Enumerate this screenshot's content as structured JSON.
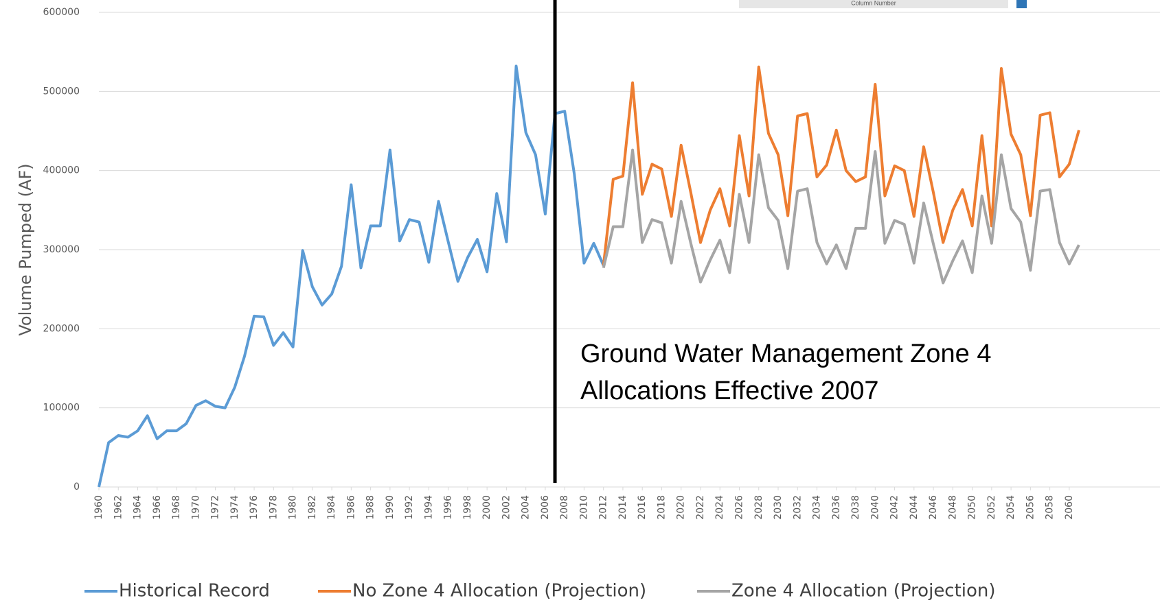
{
  "chart_data": {
    "type": "line",
    "y_label": "Volume Pumped (AF)",
    "annotation": [
      "Ground Water Management Zone 4",
      "Allocations Effective 2007"
    ],
    "inset_label": "Column Number",
    "vline_x": 2007,
    "xlim": [
      1960,
      2061
    ],
    "ylim": [
      0,
      600000
    ],
    "yticks": [
      0,
      100000,
      200000,
      300000,
      400000,
      500000,
      600000
    ],
    "xticks": [
      1960,
      1962,
      1964,
      1966,
      1968,
      1970,
      1972,
      1974,
      1976,
      1978,
      1980,
      1982,
      1984,
      1986,
      1988,
      1990,
      1992,
      1994,
      1996,
      1998,
      2000,
      2002,
      2004,
      2006,
      2008,
      2010,
      2012,
      2014,
      2016,
      2018,
      2020,
      2022,
      2024,
      2026,
      2028,
      2030,
      2032,
      2034,
      2036,
      2038,
      2040,
      2042,
      2044,
      2046,
      2048,
      2050,
      2052,
      2054,
      2056,
      2058,
      2060
    ],
    "grid": true,
    "x": [
      1960,
      1961,
      1962,
      1963,
      1964,
      1965,
      1966,
      1967,
      1968,
      1969,
      1970,
      1971,
      1972,
      1973,
      1974,
      1975,
      1976,
      1977,
      1978,
      1979,
      1980,
      1981,
      1982,
      1983,
      1984,
      1985,
      1986,
      1987,
      1988,
      1989,
      1990,
      1991,
      1992,
      1993,
      1994,
      1995,
      1996,
      1997,
      1998,
      1999,
      2000,
      2001,
      2002,
      2003,
      2004,
      2005,
      2006,
      2007,
      2008,
      2009,
      2010,
      2011,
      2012,
      2013,
      2014,
      2015,
      2016,
      2017,
      2018,
      2019,
      2020,
      2021,
      2022,
      2023,
      2024,
      2025,
      2026,
      2027,
      2028,
      2029,
      2030,
      2031,
      2032,
      2033,
      2034,
      2035,
      2036,
      2037,
      2038,
      2039,
      2040,
      2041,
      2042,
      2043,
      2044,
      2045,
      2046,
      2047,
      2048,
      2049,
      2050,
      2051,
      2052,
      2053,
      2054,
      2055,
      2056,
      2057,
      2058,
      2059,
      2060,
      2061
    ],
    "series": [
      {
        "name": "Historical Record",
        "color": "#5b9bd5",
        "values": [
          0,
          56000,
          65000,
          63000,
          71000,
          90000,
          61000,
          71000,
          71000,
          80000,
          103000,
          109000,
          102000,
          100000,
          126000,
          165000,
          216000,
          215000,
          179000,
          195000,
          177000,
          299000,
          253000,
          230000,
          244000,
          279000,
          382000,
          277000,
          330000,
          330000,
          426000,
          311000,
          338000,
          335000,
          284000,
          361000,
          310000,
          260000,
          290000,
          313000,
          272000,
          371000,
          310000,
          532000,
          448000,
          420000,
          345000,
          472000,
          475000,
          395000,
          283000,
          308000,
          280000,
          null,
          null,
          null,
          null,
          null,
          null,
          null,
          null,
          null,
          null,
          null,
          null,
          null,
          null,
          null,
          null,
          null,
          null,
          null,
          null,
          null,
          null,
          null,
          null,
          null,
          null,
          null,
          null,
          null,
          null,
          null,
          null,
          null,
          null,
          null,
          null,
          null,
          null,
          null,
          null,
          null,
          null,
          null,
          null,
          null,
          null,
          null,
          null,
          null
        ]
      },
      {
        "name": "No Zone 4 Allocation (Projection)",
        "color": "#ed7d31",
        "values": [
          null,
          null,
          null,
          null,
          null,
          null,
          null,
          null,
          null,
          null,
          null,
          null,
          null,
          null,
          null,
          null,
          null,
          null,
          null,
          null,
          null,
          null,
          null,
          null,
          null,
          null,
          null,
          null,
          null,
          null,
          null,
          null,
          null,
          null,
          null,
          null,
          null,
          null,
          null,
          null,
          null,
          null,
          null,
          null,
          null,
          null,
          null,
          null,
          null,
          null,
          null,
          null,
          280000,
          389000,
          393000,
          511000,
          370000,
          408000,
          402000,
          342000,
          432000,
          372000,
          309000,
          350000,
          377000,
          330000,
          444000,
          368000,
          531000,
          447000,
          420000,
          343000,
          469000,
          472000,
          392000,
          407000,
          451000,
          400000,
          386000,
          392000,
          509000,
          368000,
          406000,
          400000,
          342000,
          430000,
          372000,
          309000,
          350000,
          376000,
          330000,
          444000,
          330000,
          529000,
          446000,
          420000,
          343000,
          470000,
          473000,
          392000,
          408000,
          451000
        ]
      },
      {
        "name": "Zone 4 Allocation (Projection)",
        "color": "#a5a5a5",
        "values": [
          null,
          null,
          null,
          null,
          null,
          null,
          null,
          null,
          null,
          null,
          null,
          null,
          null,
          null,
          null,
          null,
          null,
          null,
          null,
          null,
          null,
          null,
          null,
          null,
          null,
          null,
          null,
          null,
          null,
          null,
          null,
          null,
          null,
          null,
          null,
          null,
          null,
          null,
          null,
          null,
          null,
          null,
          null,
          null,
          null,
          null,
          null,
          null,
          null,
          null,
          null,
          null,
          277000,
          329000,
          329000,
          426000,
          309000,
          338000,
          334000,
          283000,
          361000,
          308000,
          259000,
          287000,
          312000,
          271000,
          370000,
          309000,
          420000,
          353000,
          337000,
          276000,
          374000,
          377000,
          309000,
          282000,
          306000,
          276000,
          327000,
          327000,
          424000,
          308000,
          337000,
          332000,
          283000,
          359000,
          307000,
          258000,
          286000,
          311000,
          271000,
          368000,
          308000,
          420000,
          352000,
          335000,
          274000,
          374000,
          376000,
          309000,
          282000,
          306000
        ]
      }
    ]
  }
}
